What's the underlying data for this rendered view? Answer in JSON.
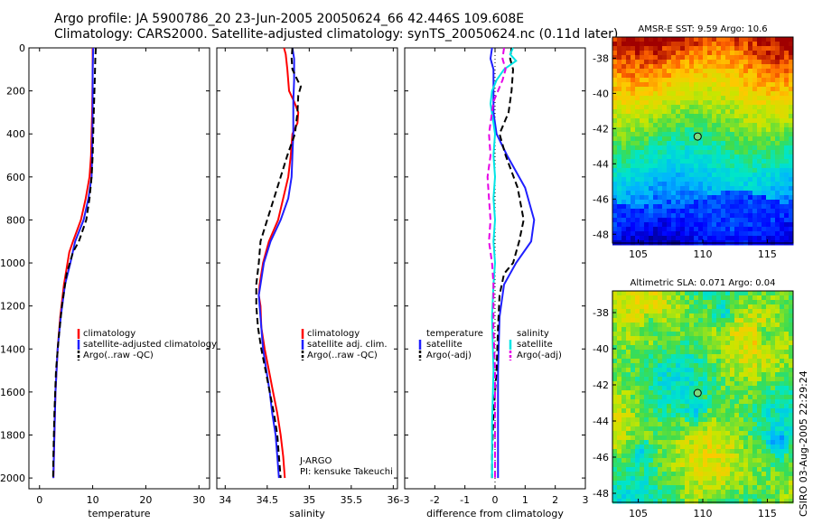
{
  "header": {
    "title_line1": "Argo profile: JA 5900786_20 23-Jun-2005 20050624_66 42.446S 109.608E",
    "title_line2": "Climatology: CARS2000. Satellite-adjusted climatology: synTS_20050624.nc (0.11d later)"
  },
  "signature": "CSIRO 03-Aug-2005 22:29:24",
  "colors": {
    "red": "#ff0000",
    "blue": "#1f1fff",
    "black": "#000000",
    "cyan": "#00e5e5",
    "magenta": "#e600e6"
  },
  "chart_data": [
    {
      "id": "temperature",
      "type": "line",
      "xlabel": "temperature",
      "xlim": [
        -2,
        32
      ],
      "xticks": [
        0,
        10,
        20,
        30
      ],
      "ylim": [
        2050,
        0
      ],
      "yticks": [
        0,
        200,
        400,
        600,
        800,
        1000,
        1200,
        1400,
        1600,
        1800,
        2000
      ],
      "legend": {
        "placement": "center-right",
        "entries": [
          "climatology",
          "satellite-adjusted climatology",
          "Argo(..raw -QC)"
        ]
      },
      "series": [
        {
          "name": "climatology",
          "color": "red",
          "dash": "solid",
          "points": [
            [
              10.0,
              0
            ],
            [
              10.0,
              100
            ],
            [
              9.9,
              300
            ],
            [
              9.7,
              500
            ],
            [
              9.4,
              600
            ],
            [
              8.7,
              700
            ],
            [
              7.8,
              800
            ],
            [
              6.3,
              900
            ],
            [
              5.6,
              950
            ],
            [
              4.6,
              1100
            ],
            [
              3.9,
              1250
            ],
            [
              3.4,
              1400
            ],
            [
              3.0,
              1600
            ],
            [
              2.8,
              1800
            ],
            [
              2.6,
              2000
            ]
          ]
        },
        {
          "name": "satellite-adjusted climatology",
          "color": "blue",
          "dash": "solid",
          "points": [
            [
              10.1,
              0
            ],
            [
              10.0,
              100
            ],
            [
              10.0,
              300
            ],
            [
              9.9,
              500
            ],
            [
              9.8,
              600
            ],
            [
              9.2,
              700
            ],
            [
              8.3,
              800
            ],
            [
              6.7,
              900
            ],
            [
              5.8,
              1000
            ],
            [
              4.8,
              1100
            ],
            [
              4.0,
              1250
            ],
            [
              3.4,
              1400
            ],
            [
              3.0,
              1600
            ],
            [
              2.8,
              1800
            ],
            [
              2.6,
              2000
            ]
          ]
        },
        {
          "name": "Argo(..raw -QC)",
          "color": "black",
          "dash": "dashed",
          "points": [
            [
              10.6,
              0
            ],
            [
              10.5,
              50
            ],
            [
              10.4,
              150
            ],
            [
              10.2,
              300
            ],
            [
              10.0,
              500
            ],
            [
              9.8,
              600
            ],
            [
              9.4,
              700
            ],
            [
              8.8,
              800
            ],
            [
              7.4,
              900
            ],
            [
              6.3,
              950
            ],
            [
              5.1,
              1050
            ],
            [
              4.2,
              1200
            ],
            [
              3.6,
              1350
            ],
            [
              3.1,
              1500
            ],
            [
              2.8,
              1700
            ],
            [
              2.6,
              1900
            ],
            [
              2.55,
              2000
            ]
          ]
        }
      ]
    },
    {
      "id": "salinity",
      "type": "line",
      "xlabel": "salinity",
      "xlim": [
        33.9,
        36.05
      ],
      "xticks": [
        34,
        34.5,
        35,
        35.5,
        36
      ],
      "ylim": [
        2050,
        0
      ],
      "yticks": [
        0,
        200,
        400,
        600,
        800,
        1000,
        1200,
        1400,
        1600,
        1800,
        2000
      ],
      "legend": {
        "placement": "center-right",
        "entries": [
          "climatology",
          "satellite adj. clim.",
          "Argo(..raw -QC)"
        ]
      },
      "annotations": [
        "J-ARGO",
        "PI: kensuke Takeuchi"
      ],
      "series": [
        {
          "name": "climatology",
          "color": "red",
          "dash": "solid",
          "points": [
            [
              34.7,
              0
            ],
            [
              34.72,
              30
            ],
            [
              34.74,
              100
            ],
            [
              34.76,
              200
            ],
            [
              34.82,
              250
            ],
            [
              34.87,
              300
            ],
            [
              34.86,
              350
            ],
            [
              34.8,
              400
            ],
            [
              34.78,
              500
            ],
            [
              34.75,
              600
            ],
            [
              34.69,
              700
            ],
            [
              34.63,
              800
            ],
            [
              34.52,
              900
            ],
            [
              34.45,
              1000
            ],
            [
              34.41,
              1100
            ],
            [
              34.4,
              1150
            ],
            [
              34.42,
              1200
            ],
            [
              34.43,
              1300
            ],
            [
              34.47,
              1400
            ],
            [
              34.52,
              1500
            ],
            [
              34.57,
              1600
            ],
            [
              34.62,
              1700
            ],
            [
              34.66,
              1800
            ],
            [
              34.69,
              1900
            ],
            [
              34.71,
              2000
            ]
          ]
        },
        {
          "name": "satellite adj. clim.",
          "color": "blue",
          "dash": "solid",
          "points": [
            [
              34.8,
              0
            ],
            [
              34.82,
              50
            ],
            [
              34.82,
              150
            ],
            [
              34.81,
              250
            ],
            [
              34.81,
              400
            ],
            [
              34.8,
              500
            ],
            [
              34.79,
              600
            ],
            [
              34.75,
              700
            ],
            [
              34.66,
              800
            ],
            [
              34.54,
              900
            ],
            [
              34.46,
              1000
            ],
            [
              34.42,
              1100
            ],
            [
              34.4,
              1150
            ],
            [
              34.41,
              1200
            ],
            [
              34.43,
              1300
            ],
            [
              34.45,
              1400
            ],
            [
              34.49,
              1500
            ],
            [
              34.53,
              1600
            ],
            [
              34.56,
              1700
            ],
            [
              34.6,
              1800
            ],
            [
              34.62,
              1900
            ],
            [
              34.64,
              2000
            ]
          ]
        },
        {
          "name": "Argo(..raw -QC)",
          "color": "black",
          "dash": "dashed",
          "points": [
            [
              34.8,
              0
            ],
            [
              34.79,
              50
            ],
            [
              34.8,
              100
            ],
            [
              34.86,
              150
            ],
            [
              34.9,
              180
            ],
            [
              34.87,
              220
            ],
            [
              34.86,
              300
            ],
            [
              34.83,
              400
            ],
            [
              34.74,
              500
            ],
            [
              34.66,
              600
            ],
            [
              34.58,
              700
            ],
            [
              34.5,
              800
            ],
            [
              34.42,
              900
            ],
            [
              34.4,
              1000
            ],
            [
              34.37,
              1100
            ],
            [
              34.37,
              1200
            ],
            [
              34.39,
              1300
            ],
            [
              34.43,
              1400
            ],
            [
              34.48,
              1500
            ],
            [
              34.53,
              1600
            ],
            [
              34.58,
              1700
            ],
            [
              34.62,
              1800
            ],
            [
              34.64,
              1900
            ],
            [
              34.66,
              2000
            ]
          ]
        }
      ]
    },
    {
      "id": "difference",
      "type": "line",
      "xlabel": "difference from climatology",
      "xlim": [
        -3,
        3
      ],
      "xticks": [
        -3,
        -2,
        -1,
        0,
        1,
        2,
        3
      ],
      "ylim": [
        2050,
        0
      ],
      "yticks": [
        0,
        200,
        400,
        600,
        800,
        1000,
        1200,
        1400,
        1600,
        1800,
        2000
      ],
      "legend": {
        "placement": "center",
        "entries": [
          "temperature",
          "satellite",
          "Argo(-adj)",
          "salinity",
          "satellite",
          "Argo(-adj)"
        ]
      },
      "series": [
        {
          "name": "satellite",
          "color": "blue",
          "dash": "solid",
          "points": [
            [
              -0.1,
              0
            ],
            [
              -0.15,
              50
            ],
            [
              -0.05,
              100
            ],
            [
              -0.05,
              200
            ],
            [
              -0.05,
              300
            ],
            [
              0.05,
              400
            ],
            [
              0.4,
              500
            ],
            [
              1.0,
              650
            ],
            [
              1.3,
              800
            ],
            [
              1.2,
              900
            ],
            [
              0.7,
              1000
            ],
            [
              0.3,
              1100
            ],
            [
              0.15,
              1250
            ],
            [
              0.1,
              1500
            ],
            [
              0.1,
              2000
            ]
          ]
        },
        {
          "name": "Argo(-adj)",
          "color": "black",
          "dash": "dashed",
          "points": [
            [
              0.55,
              0
            ],
            [
              0.5,
              50
            ],
            [
              0.6,
              100
            ],
            [
              0.55,
              200
            ],
            [
              0.45,
              300
            ],
            [
              0.15,
              400
            ],
            [
              0.35,
              500
            ],
            [
              0.75,
              650
            ],
            [
              0.95,
              800
            ],
            [
              0.8,
              900
            ],
            [
              0.6,
              1000
            ],
            [
              0.3,
              1050
            ],
            [
              0.15,
              1150
            ],
            [
              0.1,
              1300
            ],
            [
              0.05,
              1500
            ],
            [
              -0.05,
              1700
            ],
            [
              -0.1,
              1900
            ],
            [
              -0.1,
              2000
            ]
          ]
        },
        {
          "name": "satellite",
          "color": "cyan",
          "dash": "solid",
          "points": [
            [
              0.6,
              0
            ],
            [
              0.5,
              30
            ],
            [
              0.7,
              60
            ],
            [
              0.3,
              100
            ],
            [
              0.05,
              150
            ],
            [
              -0.1,
              200
            ],
            [
              -0.15,
              260
            ],
            [
              -0.05,
              350
            ],
            [
              0.0,
              400
            ],
            [
              -0.05,
              500
            ],
            [
              0.0,
              600
            ],
            [
              -0.05,
              700
            ],
            [
              0.0,
              800
            ],
            [
              -0.05,
              900
            ],
            [
              0.0,
              1000
            ],
            [
              -0.05,
              1100
            ],
            [
              -0.1,
              1250
            ],
            [
              -0.05,
              1500
            ],
            [
              -0.1,
              1750
            ],
            [
              -0.1,
              2000
            ]
          ]
        },
        {
          "name": "Argo(-adj)",
          "color": "magenta",
          "dash": "dashed",
          "points": [
            [
              0.3,
              0
            ],
            [
              0.25,
              50
            ],
            [
              0.35,
              100
            ],
            [
              0.25,
              150
            ],
            [
              -0.05,
              250
            ],
            [
              -0.2,
              400
            ],
            [
              -0.15,
              500
            ],
            [
              -0.25,
              600
            ],
            [
              -0.2,
              700
            ],
            [
              -0.15,
              800
            ],
            [
              -0.2,
              900
            ],
            [
              -0.1,
              1000
            ],
            [
              -0.05,
              1100
            ],
            [
              -0.05,
              1300
            ],
            [
              0.0,
              1500
            ],
            [
              0.0,
              1800
            ],
            [
              0.0,
              2000
            ]
          ]
        }
      ]
    },
    {
      "id": "sst-map",
      "type": "heatmap",
      "title": "AMSR-E SST: 9.59 Argo: 10.6",
      "xlim": [
        103,
        117
      ],
      "ylim": [
        -48.5,
        -36.8
      ],
      "xticks": [
        105,
        110,
        115
      ],
      "yticks": [
        -38,
        -40,
        -42,
        -44,
        -46,
        -48
      ],
      "marker": {
        "lon": 109.6,
        "lat": -42.45
      }
    },
    {
      "id": "sla-map",
      "type": "heatmap",
      "title": "Altimetric SLA: 0.071 Argo: 0.04",
      "xlim": [
        103,
        117
      ],
      "ylim": [
        -48.5,
        -36.8
      ],
      "xticks": [
        105,
        110,
        115
      ],
      "yticks": [
        -38,
        -40,
        -42,
        -44,
        -46,
        -48
      ],
      "marker": {
        "lon": 109.6,
        "lat": -42.45
      }
    }
  ]
}
